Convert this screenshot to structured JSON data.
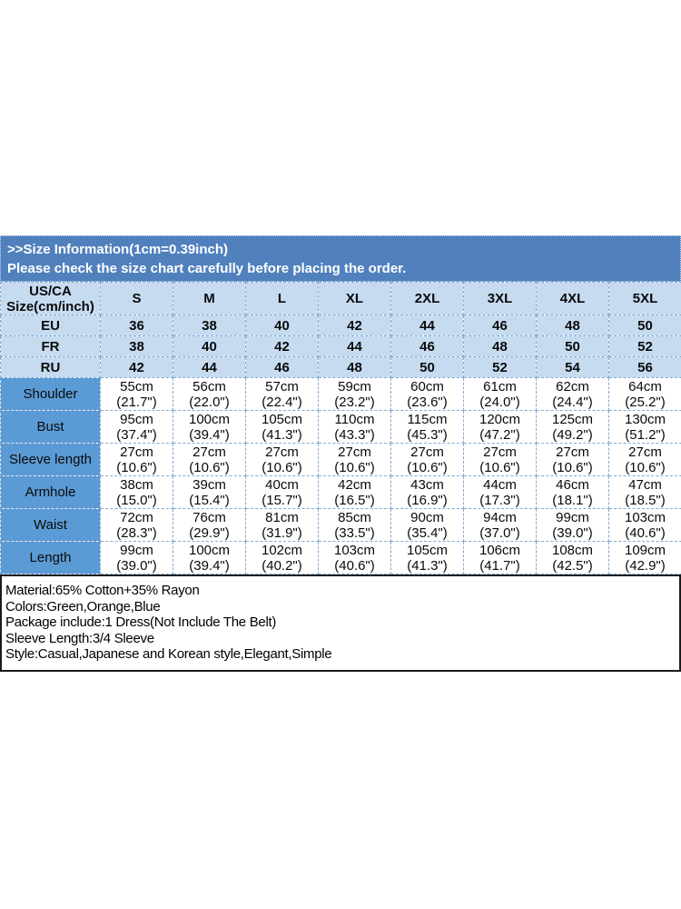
{
  "banner": {
    "line1": ">>Size Information(1cm=0.39inch)",
    "line2": "Please check the size chart carefully before placing the order."
  },
  "size_table": {
    "corner_header": [
      "US/CA",
      "Size(cm/inch)"
    ],
    "size_labels": [
      "S",
      "M",
      "L",
      "XL",
      "2XL",
      "3XL",
      "4XL",
      "5XL"
    ],
    "region_rows": [
      {
        "label": "EU",
        "values": [
          "36",
          "38",
          "40",
          "42",
          "44",
          "46",
          "48",
          "50"
        ]
      },
      {
        "label": "FR",
        "values": [
          "38",
          "40",
          "42",
          "44",
          "46",
          "48",
          "50",
          "52"
        ]
      },
      {
        "label": "RU",
        "values": [
          "42",
          "44",
          "46",
          "48",
          "50",
          "52",
          "54",
          "56"
        ]
      }
    ],
    "measurement_rows": [
      {
        "label": "Shoulder",
        "values": [
          [
            "55cm",
            "(21.7\")"
          ],
          [
            "56cm",
            "(22.0\")"
          ],
          [
            "57cm",
            "(22.4\")"
          ],
          [
            "59cm",
            "(23.2\")"
          ],
          [
            "60cm",
            "(23.6\")"
          ],
          [
            "61cm",
            "(24.0\")"
          ],
          [
            "62cm",
            "(24.4\")"
          ],
          [
            "64cm",
            "(25.2\")"
          ]
        ]
      },
      {
        "label": "Bust",
        "values": [
          [
            "95cm",
            "(37.4\")"
          ],
          [
            "100cm",
            "(39.4\")"
          ],
          [
            "105cm",
            "(41.3\")"
          ],
          [
            "110cm",
            "(43.3\")"
          ],
          [
            "115cm",
            "(45.3\")"
          ],
          [
            "120cm",
            "(47.2\")"
          ],
          [
            "125cm",
            "(49.2\")"
          ],
          [
            "130cm",
            "(51.2\")"
          ]
        ]
      },
      {
        "label": "Sleeve length",
        "values": [
          [
            "27cm",
            "(10.6\")"
          ],
          [
            "27cm",
            "(10.6\")"
          ],
          [
            "27cm",
            "(10.6\")"
          ],
          [
            "27cm",
            "(10.6\")"
          ],
          [
            "27cm",
            "(10.6\")"
          ],
          [
            "27cm",
            "(10.6\")"
          ],
          [
            "27cm",
            "(10.6\")"
          ],
          [
            "27cm",
            "(10.6\")"
          ]
        ]
      },
      {
        "label": "Armhole",
        "values": [
          [
            "38cm",
            "(15.0\")"
          ],
          [
            "39cm",
            "(15.4\")"
          ],
          [
            "40cm",
            "(15.7\")"
          ],
          [
            "42cm",
            "(16.5\")"
          ],
          [
            "43cm",
            "(16.9\")"
          ],
          [
            "44cm",
            "(17.3\")"
          ],
          [
            "46cm",
            "(18.1\")"
          ],
          [
            "47cm",
            "(18.5\")"
          ]
        ]
      },
      {
        "label": "Waist",
        "values": [
          [
            "72cm",
            "(28.3\")"
          ],
          [
            "76cm",
            "(29.9\")"
          ],
          [
            "81cm",
            "(31.9\")"
          ],
          [
            "85cm",
            "(33.5\")"
          ],
          [
            "90cm",
            "(35.4\")"
          ],
          [
            "94cm",
            "(37.0\")"
          ],
          [
            "99cm",
            "(39.0\")"
          ],
          [
            "103cm",
            "(40.6\")"
          ]
        ]
      },
      {
        "label": "Length",
        "values": [
          [
            "99cm",
            "(39.0\")"
          ],
          [
            "100cm",
            "(39.4\")"
          ],
          [
            "102cm",
            "(40.2\")"
          ],
          [
            "103cm",
            "(40.6\")"
          ],
          [
            "105cm",
            "(41.3\")"
          ],
          [
            "106cm",
            "(41.7\")"
          ],
          [
            "108cm",
            "(42.5\")"
          ],
          [
            "109cm",
            "(42.9\")"
          ]
        ]
      }
    ]
  },
  "product_notes": {
    "lines": [
      "Material:65% Cotton+35% Rayon",
      "Colors:Green,Orange,Blue",
      "Package include:1 Dress(Not Include The Belt)",
      "Sleeve Length:3/4 Sleeve",
      "Style:Casual,Japanese and Korean style,Elegant,Simple"
    ]
  },
  "colors": {
    "banner_blue": "#5081BD",
    "header_light_blue": "#C6DBF0",
    "label_blue": "#5B9BD5",
    "border_dash": "#84A9D2",
    "note_border": "#1A1A1A"
  }
}
